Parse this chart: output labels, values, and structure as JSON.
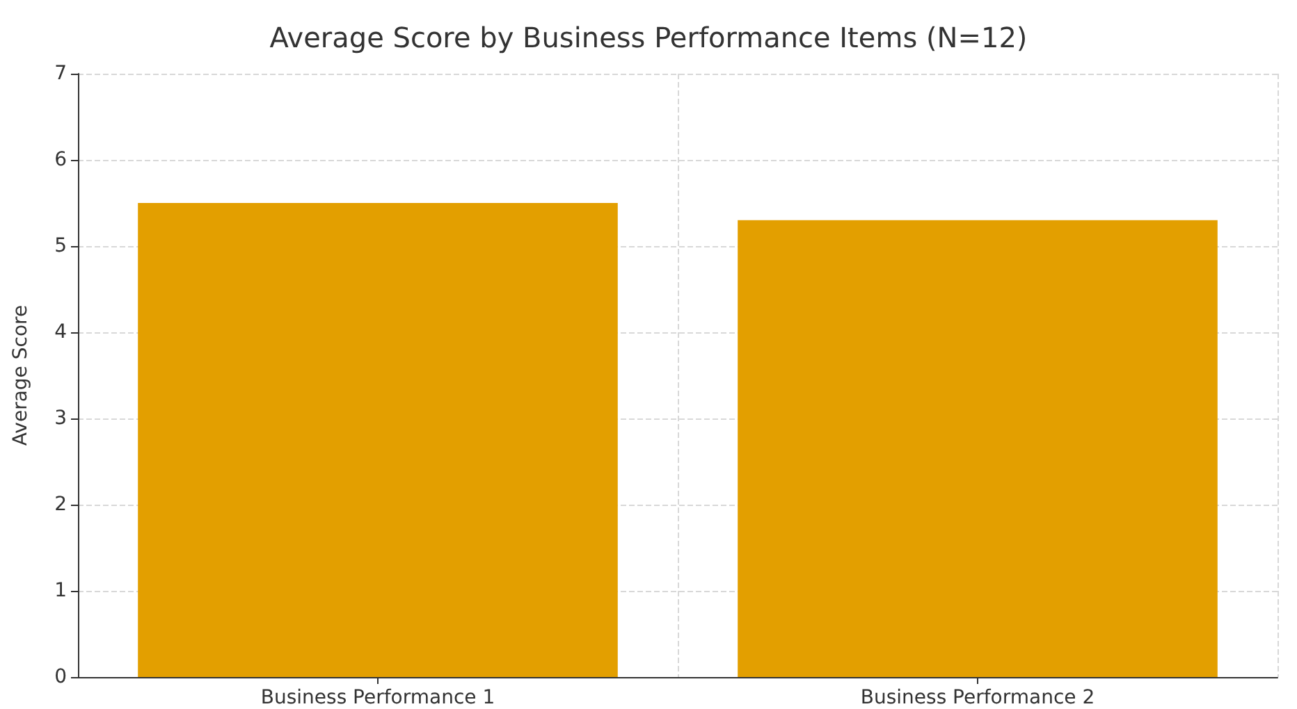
{
  "chart_data": {
    "type": "bar",
    "title": "Average Score by Business Performance Items (N=12)",
    "ylabel": "Average Score",
    "categories": [
      "Business Performance 1",
      "Business Performance 2"
    ],
    "values": [
      5.5,
      5.3
    ],
    "color": "#e39f00",
    "ylim": [
      0,
      7
    ],
    "yticks": [
      0,
      1,
      2,
      3,
      4,
      5,
      6,
      7
    ],
    "grid": true
  }
}
